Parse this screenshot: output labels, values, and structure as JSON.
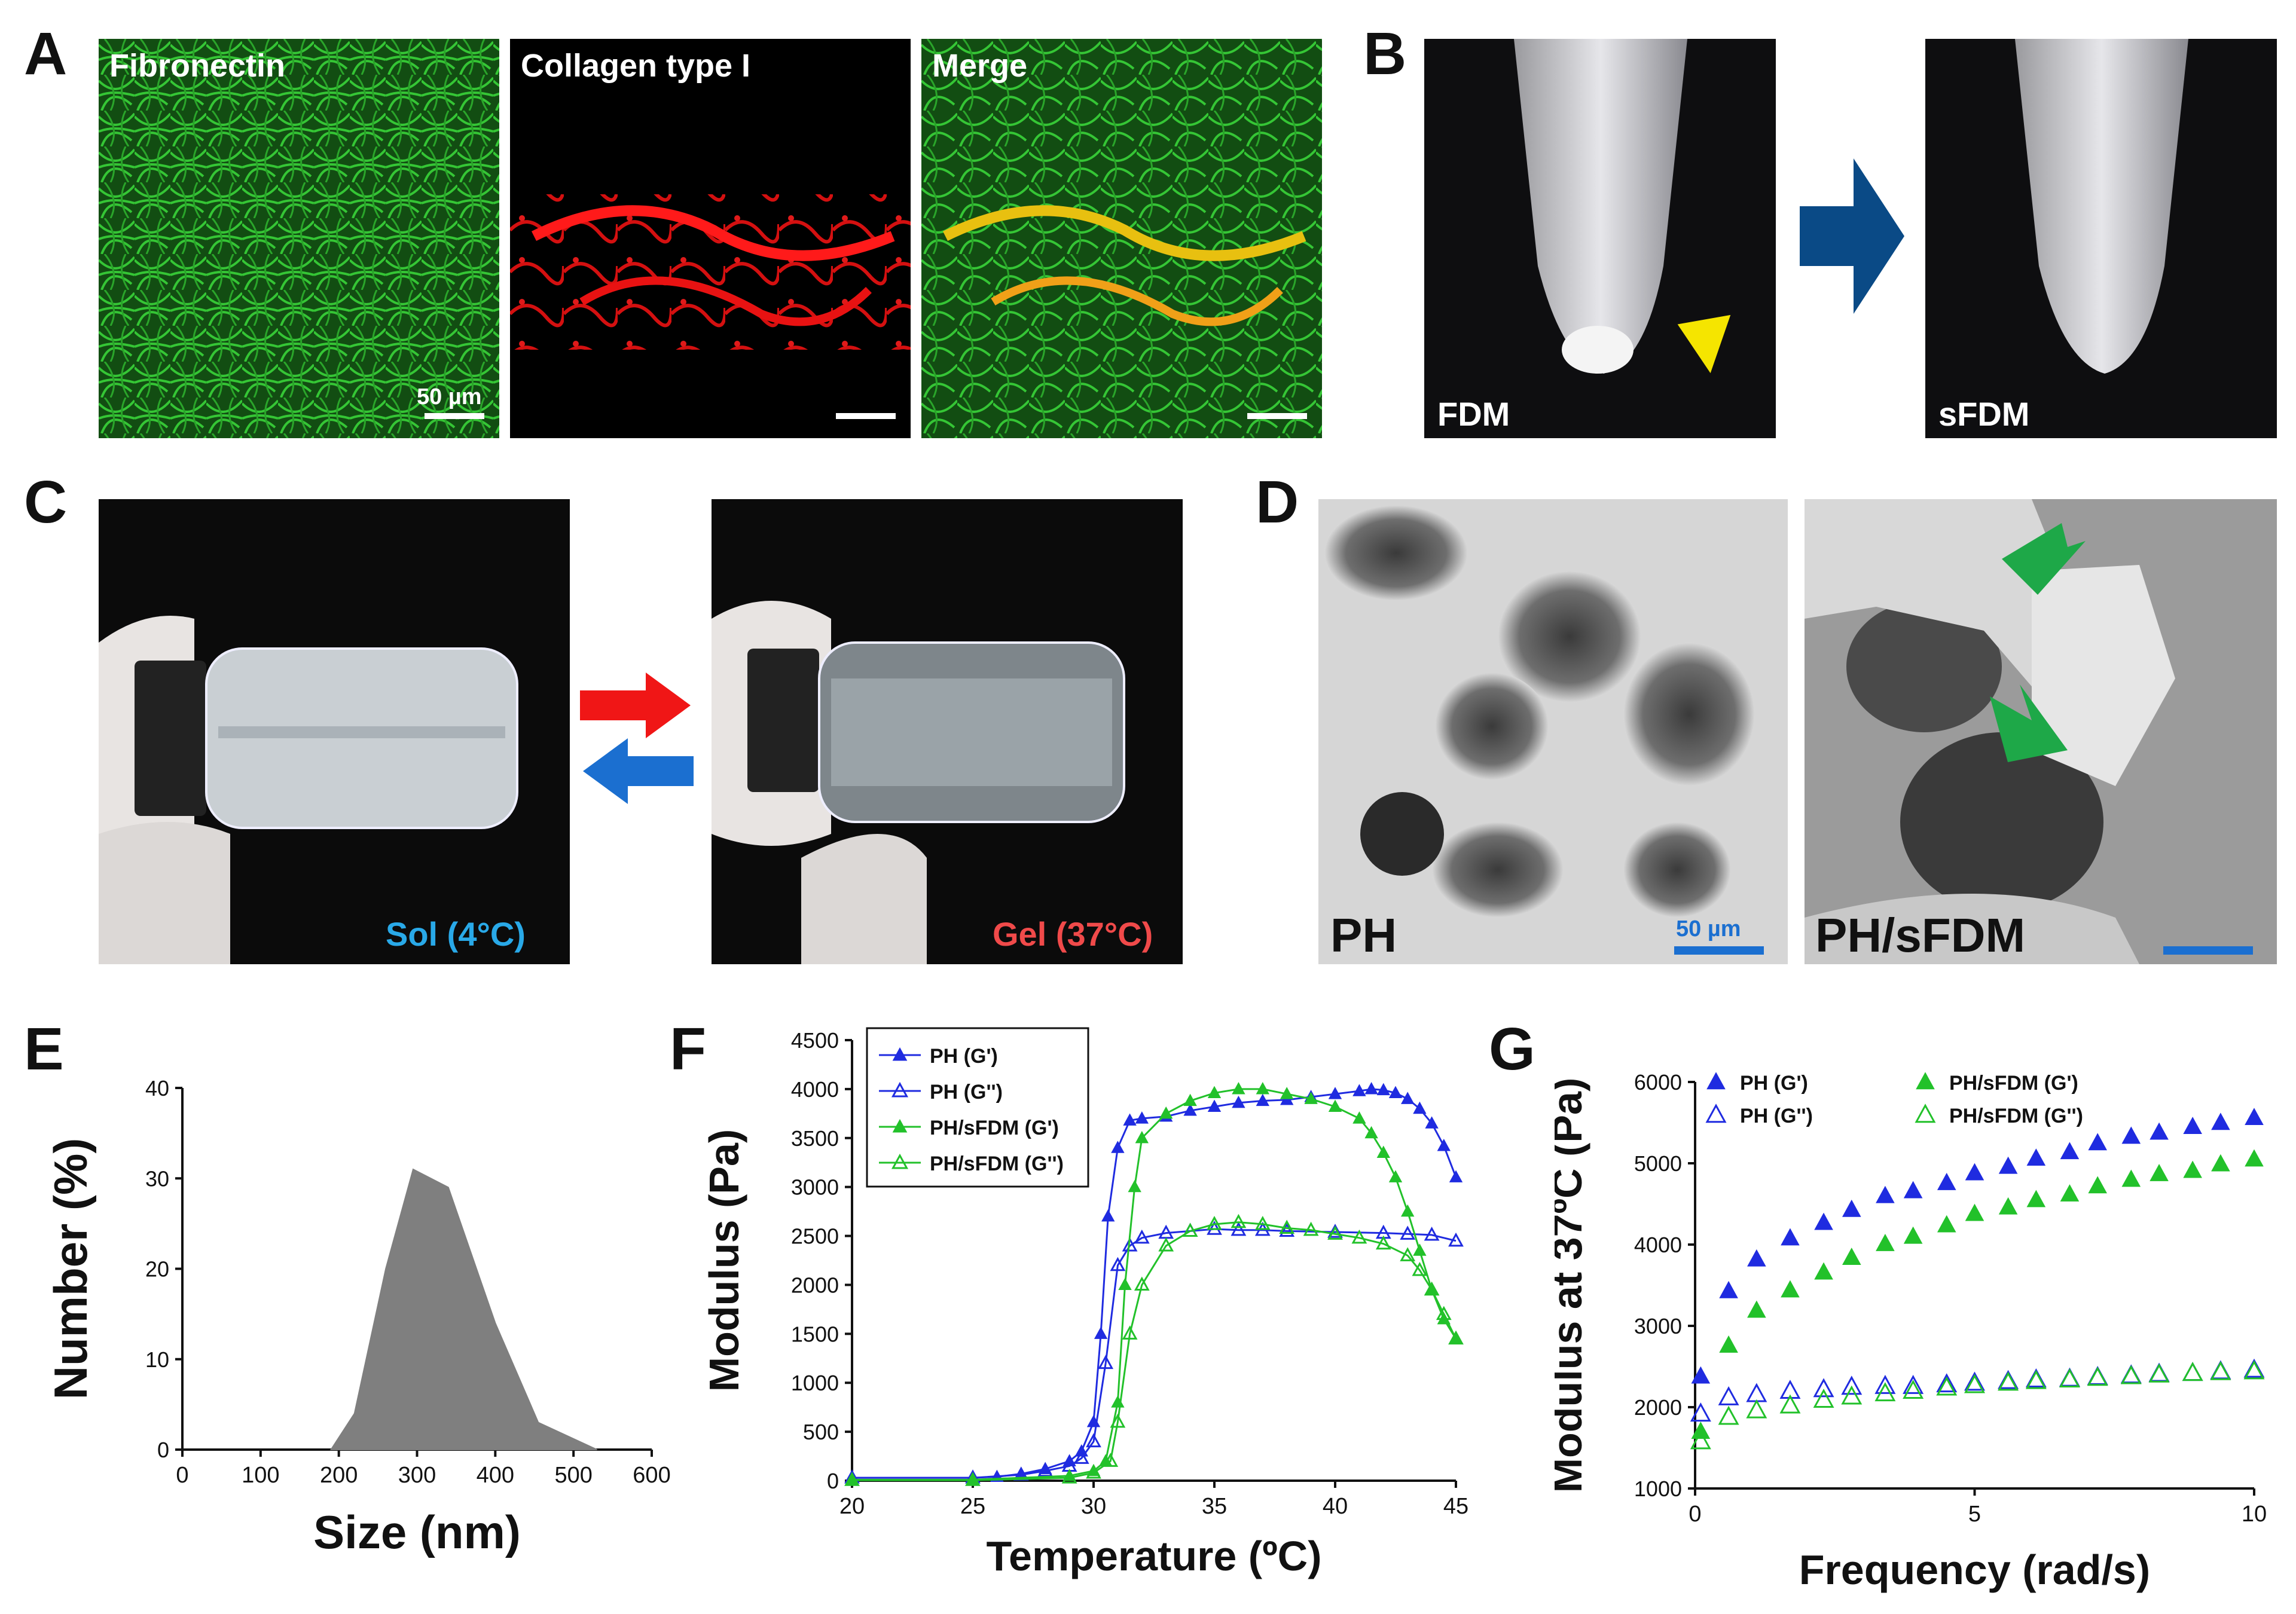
{
  "panels": {
    "A": {
      "label": "A",
      "tiles": [
        "Fibronectin",
        "Collagen type I",
        "Merge"
      ],
      "scale": "50 µm"
    },
    "B": {
      "label": "B",
      "left": "FDM",
      "right": "sFDM"
    },
    "C": {
      "label": "C",
      "sol": "Sol (4°C)",
      "gel": "Gel (37°C)"
    },
    "D": {
      "label": "D",
      "left": "PH",
      "right": "PH/sFDM",
      "scale": "50 µm"
    },
    "E": {
      "label": "E"
    },
    "F": {
      "label": "F"
    },
    "G": {
      "label": "G"
    }
  },
  "colors": {
    "blue": "#1f2be0",
    "green": "#22c12a",
    "gray": "#7f7f7f",
    "sol": "#29a9e8",
    "gel": "#f04a4a",
    "arrow_red": "#f01616",
    "arrow_blue": "#1b6fd0",
    "arrow_navy": "#0a4a86",
    "arrow_yellow": "#f5e500",
    "arrow_green": "#1ea848"
  },
  "chart_data": [
    {
      "type": "area",
      "xlabel": "Size (nm)",
      "ylabel": "Number (%)",
      "xlim": [
        0,
        600
      ],
      "ylim": [
        0,
        40
      ],
      "xticks": [
        0,
        100,
        200,
        300,
        400,
        500,
        600
      ],
      "yticks": [
        0,
        10,
        20,
        30,
        40
      ],
      "x": [
        190,
        220,
        260,
        295,
        340,
        400,
        455,
        530
      ],
      "y": [
        0,
        4,
        20,
        31,
        29,
        14,
        3,
        0
      ]
    },
    {
      "type": "line",
      "xlabel": "Temperature (ºC)",
      "ylabel": "Modulus (Pa)",
      "xlim": [
        20,
        45
      ],
      "ylim": [
        0,
        4500
      ],
      "xticks": [
        20,
        25,
        30,
        35,
        40,
        45
      ],
      "yticks": [
        0,
        500,
        1000,
        1500,
        2000,
        2500,
        3000,
        3500,
        4000,
        4500
      ],
      "series": [
        {
          "name": "PH (G')",
          "color": "#1f2be0",
          "filled": true,
          "points": [
            [
              20,
              30
            ],
            [
              25,
              30
            ],
            [
              26,
              40
            ],
            [
              27,
              70
            ],
            [
              28,
              120
            ],
            [
              29,
              200
            ],
            [
              29.5,
              300
            ],
            [
              30,
              600
            ],
            [
              30.3,
              1500
            ],
            [
              30.6,
              2700
            ],
            [
              31,
              3400
            ],
            [
              31.5,
              3680
            ],
            [
              32,
              3700
            ],
            [
              33,
              3720
            ],
            [
              34,
              3780
            ],
            [
              35,
              3820
            ],
            [
              36,
              3860
            ],
            [
              37,
              3880
            ],
            [
              38,
              3890
            ],
            [
              39,
              3920
            ],
            [
              40,
              3950
            ],
            [
              41,
              3980
            ],
            [
              41.5,
              4000
            ],
            [
              42,
              3990
            ],
            [
              42.5,
              3960
            ],
            [
              43,
              3900
            ],
            [
              43.5,
              3800
            ],
            [
              44,
              3650
            ],
            [
              44.5,
              3420
            ],
            [
              45,
              3100
            ]
          ]
        },
        {
          "name": "PH (G'')",
          "color": "#1f2be0",
          "filled": false,
          "points": [
            [
              20,
              30
            ],
            [
              25,
              30
            ],
            [
              27,
              60
            ],
            [
              28,
              100
            ],
            [
              29,
              150
            ],
            [
              29.5,
              230
            ],
            [
              30,
              400
            ],
            [
              30.5,
              1200
            ],
            [
              31,
              2200
            ],
            [
              31.5,
              2400
            ],
            [
              32,
              2480
            ],
            [
              33,
              2530
            ],
            [
              34,
              2550
            ],
            [
              35,
              2570
            ],
            [
              36,
              2560
            ],
            [
              37,
              2560
            ],
            [
              38,
              2550
            ],
            [
              40,
              2540
            ],
            [
              42,
              2530
            ],
            [
              43,
              2520
            ],
            [
              44,
              2510
            ],
            [
              45,
              2450
            ]
          ]
        },
        {
          "name": "PH/sFDM (G')",
          "color": "#22c12a",
          "filled": true,
          "points": [
            [
              20,
              10
            ],
            [
              25,
              10
            ],
            [
              29,
              50
            ],
            [
              30,
              100
            ],
            [
              30.5,
              200
            ],
            [
              31,
              800
            ],
            [
              31.3,
              2000
            ],
            [
              31.7,
              3000
            ],
            [
              32,
              3500
            ],
            [
              33,
              3750
            ],
            [
              34,
              3880
            ],
            [
              35,
              3960
            ],
            [
              36,
              4000
            ],
            [
              37,
              4000
            ],
            [
              38,
              3950
            ],
            [
              39,
              3900
            ],
            [
              40,
              3820
            ],
            [
              41,
              3700
            ],
            [
              41.5,
              3550
            ],
            [
              42,
              3350
            ],
            [
              42.5,
              3100
            ],
            [
              43,
              2750
            ],
            [
              43.5,
              2350
            ],
            [
              44,
              1950
            ],
            [
              44.5,
              1650
            ],
            [
              45,
              1450
            ]
          ]
        },
        {
          "name": "PH/sFDM (G'')",
          "color": "#22c12a",
          "filled": false,
          "points": [
            [
              20,
              5
            ],
            [
              25,
              5
            ],
            [
              29,
              30
            ],
            [
              30,
              80
            ],
            [
              30.7,
              200
            ],
            [
              31,
              600
            ],
            [
              31.5,
              1500
            ],
            [
              32,
              2000
            ],
            [
              33,
              2400
            ],
            [
              34,
              2550
            ],
            [
              35,
              2620
            ],
            [
              36,
              2640
            ],
            [
              37,
              2620
            ],
            [
              38,
              2580
            ],
            [
              39,
              2560
            ],
            [
              40,
              2520
            ],
            [
              41,
              2480
            ],
            [
              42,
              2420
            ],
            [
              43,
              2300
            ],
            [
              43.5,
              2150
            ],
            [
              44,
              1950
            ],
            [
              44.5,
              1700
            ],
            [
              45,
              1450
            ]
          ]
        }
      ]
    },
    {
      "type": "scatter",
      "xlabel": "Frequency (rad/s)",
      "ylabel": "Modulus at 37ºC (Pa)",
      "xlim": [
        0,
        10
      ],
      "ylim": [
        1000,
        6000
      ],
      "xticks": [
        0,
        5,
        10
      ],
      "yticks": [
        1000,
        2000,
        3000,
        4000,
        5000,
        6000
      ],
      "series": [
        {
          "name": "PH (G')",
          "color": "#1f2be0",
          "filled": true,
          "points": [
            [
              0.1,
              2380
            ],
            [
              0.6,
              3430
            ],
            [
              1.1,
              3820
            ],
            [
              1.7,
              4080
            ],
            [
              2.3,
              4270
            ],
            [
              2.8,
              4430
            ],
            [
              3.4,
              4600
            ],
            [
              3.9,
              4660
            ],
            [
              4.5,
              4760
            ],
            [
              5.0,
              4880
            ],
            [
              5.6,
              4960
            ],
            [
              6.1,
              5060
            ],
            [
              6.7,
              5140
            ],
            [
              7.2,
              5250
            ],
            [
              7.8,
              5330
            ],
            [
              8.3,
              5380
            ],
            [
              8.9,
              5450
            ],
            [
              9.4,
              5500
            ],
            [
              10.0,
              5560
            ]
          ]
        },
        {
          "name": "PH (G'')",
          "color": "#1f2be0",
          "filled": false,
          "points": [
            [
              0.1,
              1920
            ],
            [
              0.6,
              2120
            ],
            [
              1.1,
              2160
            ],
            [
              1.7,
              2200
            ],
            [
              2.3,
              2220
            ],
            [
              2.8,
              2250
            ],
            [
              3.4,
              2260
            ],
            [
              3.9,
              2260
            ],
            [
              4.5,
              2280
            ],
            [
              5.0,
              2300
            ],
            [
              5.6,
              2320
            ],
            [
              6.1,
              2340
            ],
            [
              6.7,
              2350
            ],
            [
              7.2,
              2370
            ],
            [
              7.8,
              2390
            ],
            [
              8.3,
              2410
            ],
            [
              8.9,
              2420
            ],
            [
              9.4,
              2440
            ],
            [
              10.0,
              2460
            ]
          ]
        },
        {
          "name": "PH/sFDM (G')",
          "color": "#22c12a",
          "filled": true,
          "points": [
            [
              0.1,
              1700
            ],
            [
              0.6,
              2760
            ],
            [
              1.1,
              3190
            ],
            [
              1.7,
              3440
            ],
            [
              2.3,
              3660
            ],
            [
              2.8,
              3840
            ],
            [
              3.4,
              4010
            ],
            [
              3.9,
              4100
            ],
            [
              4.5,
              4240
            ],
            [
              5.0,
              4380
            ],
            [
              5.6,
              4460
            ],
            [
              6.1,
              4550
            ],
            [
              6.7,
              4620
            ],
            [
              7.2,
              4720
            ],
            [
              7.8,
              4800
            ],
            [
              8.3,
              4870
            ],
            [
              8.9,
              4910
            ],
            [
              9.4,
              4990
            ],
            [
              10.0,
              5050
            ]
          ]
        },
        {
          "name": "PH/sFDM (G'')",
          "color": "#22c12a",
          "filled": false,
          "points": [
            [
              0.1,
              1580
            ],
            [
              0.6,
              1880
            ],
            [
              1.1,
              1960
            ],
            [
              1.7,
              2020
            ],
            [
              2.3,
              2090
            ],
            [
              2.8,
              2130
            ],
            [
              3.4,
              2170
            ],
            [
              3.9,
              2200
            ],
            [
              4.5,
              2240
            ],
            [
              5.0,
              2270
            ],
            [
              5.6,
              2300
            ],
            [
              6.1,
              2320
            ],
            [
              6.7,
              2340
            ],
            [
              7.2,
              2360
            ],
            [
              7.8,
              2380
            ],
            [
              8.3,
              2400
            ],
            [
              8.9,
              2420
            ],
            [
              9.4,
              2430
            ],
            [
              10.0,
              2440
            ]
          ]
        }
      ]
    }
  ]
}
